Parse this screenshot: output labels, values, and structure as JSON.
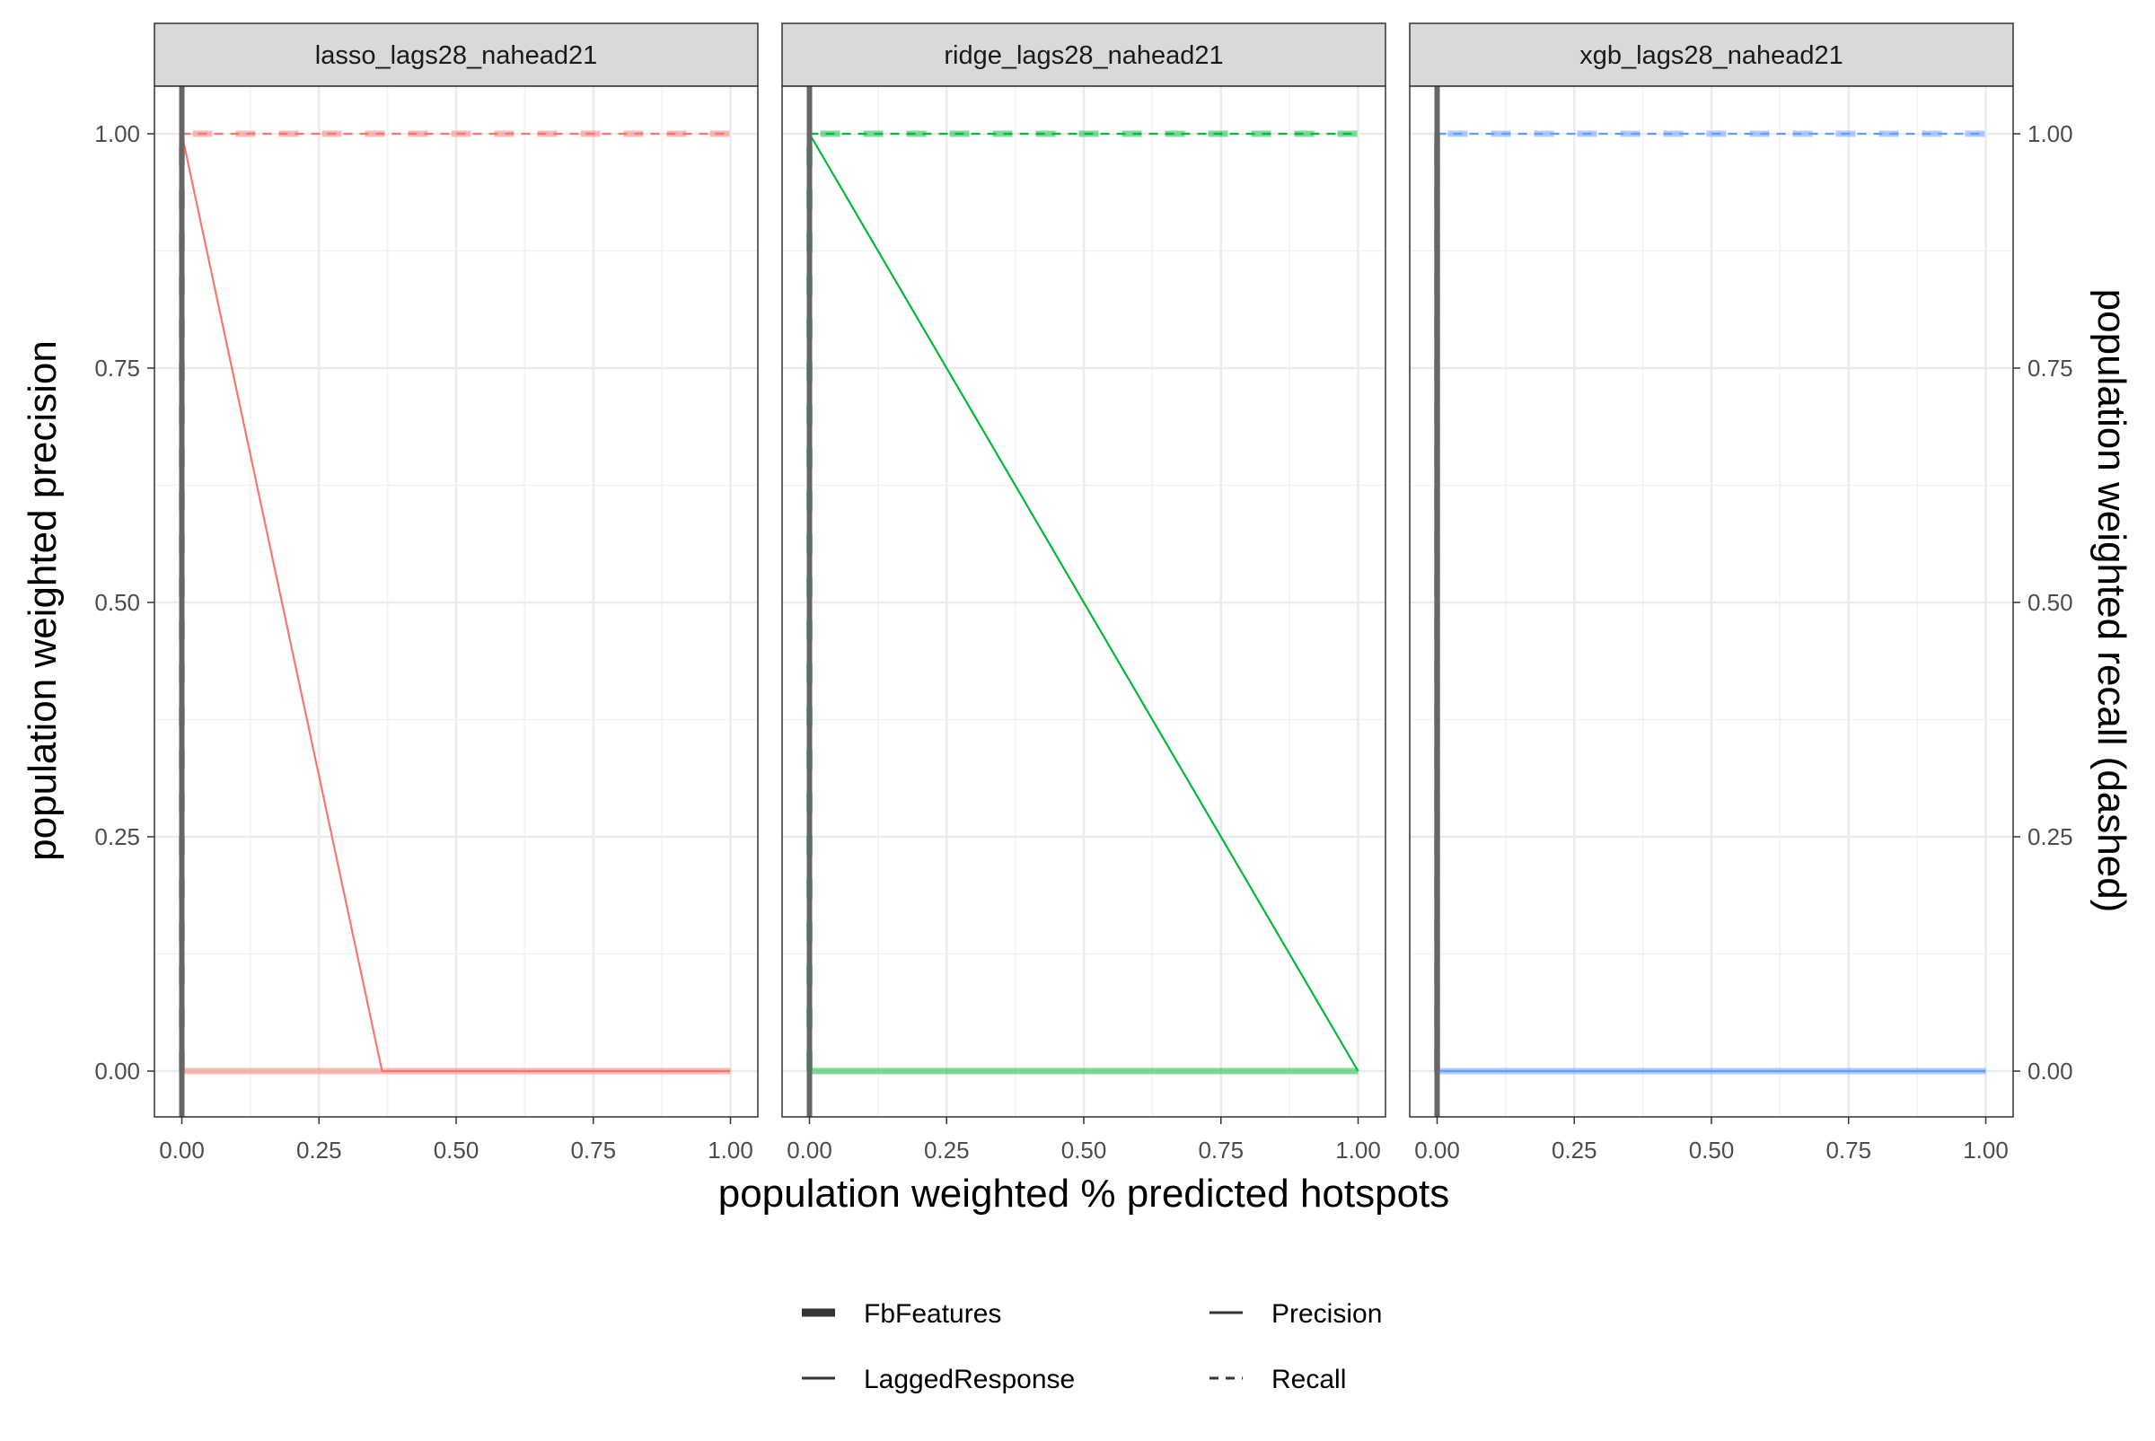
{
  "chart_data": {
    "type": "line",
    "x_axis_title": "population weighted % predicted hotspots",
    "y_axis_title_left": "population weighted precision",
    "y_axis_title_right": "population weighted recall (dashed)",
    "xlim": [
      0,
      1
    ],
    "ylim": [
      0,
      1
    ],
    "x_ticks": [
      "0.00",
      "0.25",
      "0.50",
      "0.75",
      "1.00"
    ],
    "y_ticks": [
      "0.00",
      "0.25",
      "0.50",
      "0.75",
      "1.00"
    ],
    "grid": true,
    "legend_position": "bottom",
    "legend": {
      "size_entries": [
        "FbFeatures",
        "LaggedResponse"
      ],
      "linetype_entries": [
        "Precision",
        "Recall"
      ]
    },
    "panels": [
      {
        "title": "lasso_lags28_nahead21",
        "color": "#F8766D",
        "series": [
          {
            "name": "FbFeatures",
            "metric": "Precision",
            "x": [
              0,
              0,
              1
            ],
            "y": [
              0,
              0,
              0
            ]
          },
          {
            "name": "FbFeatures",
            "metric": "Recall",
            "x": [
              0,
              0,
              1
            ],
            "y": [
              0,
              1,
              1
            ]
          },
          {
            "name": "LaggedResponse",
            "metric": "Precision",
            "x": [
              0,
              0,
              0.365,
              1
            ],
            "y": [
              0,
              1,
              0,
              0
            ]
          },
          {
            "name": "LaggedResponse",
            "metric": "Recall",
            "x": [
              0,
              0,
              1
            ],
            "y": [
              0,
              1,
              1
            ]
          }
        ]
      },
      {
        "title": "ridge_lags28_nahead21",
        "color": "#00BA38",
        "series": [
          {
            "name": "FbFeatures",
            "metric": "Precision",
            "x": [
              0,
              0,
              1
            ],
            "y": [
              0,
              0,
              0
            ]
          },
          {
            "name": "FbFeatures",
            "metric": "Recall",
            "x": [
              0,
              0,
              1
            ],
            "y": [
              0,
              1,
              1
            ]
          },
          {
            "name": "LaggedResponse",
            "metric": "Precision",
            "x": [
              0,
              0,
              1
            ],
            "y": [
              0,
              1,
              0
            ]
          },
          {
            "name": "LaggedResponse",
            "metric": "Recall",
            "x": [
              0,
              0,
              1
            ],
            "y": [
              0,
              1,
              1
            ]
          }
        ]
      },
      {
        "title": "xgb_lags28_nahead21",
        "color": "#619CFF",
        "series": [
          {
            "name": "FbFeatures",
            "metric": "Precision",
            "x": [
              0,
              0,
              1
            ],
            "y": [
              1,
              0,
              0
            ]
          },
          {
            "name": "FbFeatures",
            "metric": "Recall",
            "x": [
              0,
              0,
              1
            ],
            "y": [
              0,
              1,
              1
            ]
          },
          {
            "name": "LaggedResponse",
            "metric": "Precision",
            "x": [
              0,
              0,
              1
            ],
            "y": [
              1,
              0,
              0
            ]
          },
          {
            "name": "LaggedResponse",
            "metric": "Recall",
            "x": [
              0,
              0,
              1
            ],
            "y": [
              0,
              1,
              1
            ]
          }
        ]
      }
    ]
  }
}
